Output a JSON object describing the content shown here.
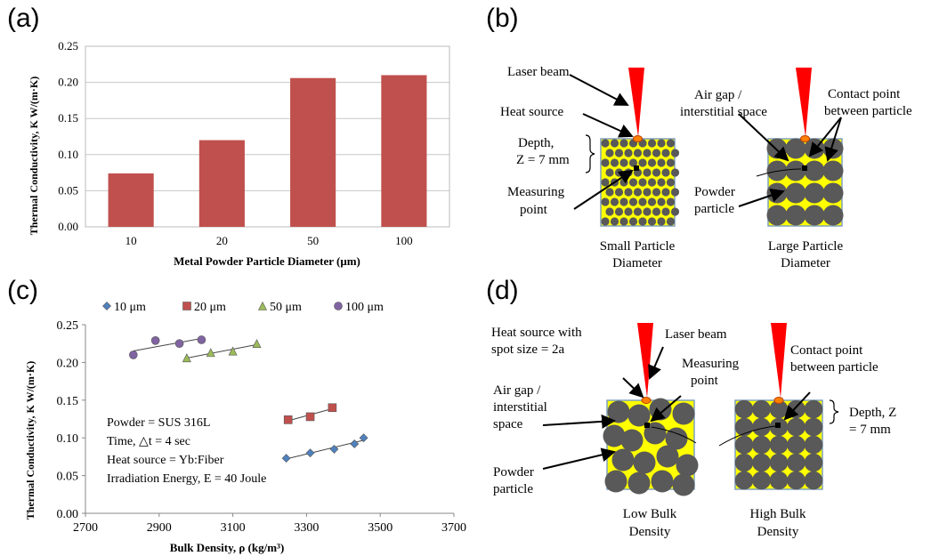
{
  "panels": {
    "a": "(a)",
    "b": "(b)",
    "c": "(c)",
    "d": "(d)"
  },
  "chart_data": [
    {
      "type": "bar",
      "categories": [
        "10",
        "20",
        "50",
        "100"
      ],
      "values": [
        0.074,
        0.12,
        0.206,
        0.21
      ],
      "title": "",
      "xlabel": "Metal Powder Particle Diameter  (μm)",
      "ylabel": "Thermal Conductivity, K  W/(m·K)",
      "ylim": [
        0,
        0.25
      ],
      "yticks": [
        "0.00",
        "0.05",
        "0.10",
        "0.15",
        "0.20",
        "0.25"
      ],
      "grid": true,
      "bar_color": "#c0504d"
    },
    {
      "type": "scatter",
      "xlabel": "Bulk Density, ρ (kg/m³)",
      "ylabel": "Thermal Conductivity, K W/(m·K)",
      "xlim": [
        2700,
        3700
      ],
      "ylim": [
        0,
        0.25
      ],
      "xticks": [
        "2700",
        "2900",
        "3100",
        "3300",
        "3500",
        "3700"
      ],
      "yticks": [
        "0.00",
        "0.05",
        "0.10",
        "0.15",
        "0.20",
        "0.25"
      ],
      "legend_position": "top",
      "series": [
        {
          "name": "10 μm",
          "marker": "diamond",
          "color": "#4f81bd",
          "x": [
            3245,
            3310,
            3375,
            3430,
            3455
          ],
          "y": [
            0.073,
            0.08,
            0.085,
            0.092,
            0.1
          ]
        },
        {
          "name": "20  μm",
          "marker": "square",
          "color": "#c0504d",
          "x": [
            3250,
            3310,
            3370
          ],
          "y": [
            0.124,
            0.128,
            0.14
          ]
        },
        {
          "name": "50 μm",
          "marker": "triangle",
          "color": "#9bbb59",
          "x": [
            2975,
            3040,
            3100,
            3165
          ],
          "y": [
            0.206,
            0.213,
            0.215,
            0.225
          ]
        },
        {
          "name": "100 μm",
          "marker": "circle",
          "color": "#8064a2",
          "x": [
            2830,
            2890,
            2955,
            3015
          ],
          "y": [
            0.21,
            0.229,
            0.225,
            0.23
          ]
        }
      ],
      "annotations": [
        "Powder = SUS 316L",
        "Time, △t = 4 sec",
        "Heat source = Yb:Fiber",
        "Irradiation Energy, E = 40 Joule"
      ]
    }
  ],
  "diagram_b": {
    "laser_beam": "Laser beam",
    "heat_source": "Heat source",
    "depth_line1": "Depth,",
    "depth_line2": "Z = 7 mm",
    "measuring_line1": "Measuring",
    "measuring_line2": "point",
    "airgap_line1": "Air gap /",
    "airgap_line2": "interstitial space",
    "contact_line1": "Contact point",
    "contact_line2": "between particle",
    "powder_line1": "Powder",
    "powder_line2": "particle",
    "small_line1": "Small Particle",
    "small_line2": "Diameter",
    "large_line1": "Large Particle",
    "large_line2": "Diameter"
  },
  "diagram_d": {
    "heat_line1": "Heat source with",
    "heat_line2": "spot size = 2a",
    "laser_beam": "Laser beam",
    "measuring_line1": "Measuring",
    "measuring_line2": "point",
    "contact_line1": "Contact point",
    "contact_line2": "between particle",
    "airgap_line1": "Air gap /",
    "airgap_line2": "interstitial",
    "airgap_line3": "space",
    "depth_line1": "Depth, Z",
    "depth_line2": "= 7 mm",
    "powder_line1": "Powder",
    "powder_line2": "particle",
    "low_line1": "Low Bulk",
    "low_line2": "Density",
    "high_line1": "High Bulk",
    "high_line2": "Density"
  }
}
